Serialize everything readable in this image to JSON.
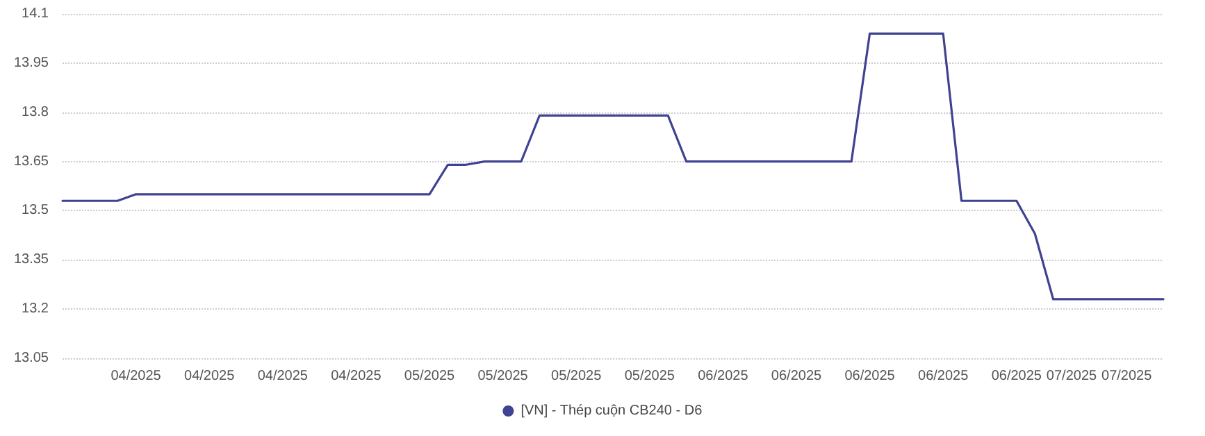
{
  "chart_data": {
    "type": "line",
    "categories": [
      null,
      null,
      null,
      null,
      "04/2025",
      null,
      null,
      null,
      "04/2025",
      null,
      null,
      null,
      "04/2025",
      null,
      null,
      null,
      "04/2025",
      null,
      null,
      null,
      "05/2025",
      null,
      null,
      null,
      "05/2025",
      null,
      null,
      null,
      "05/2025",
      null,
      null,
      null,
      "05/2025",
      null,
      null,
      null,
      "06/2025",
      null,
      null,
      null,
      "06/2025",
      null,
      null,
      null,
      "06/2025",
      null,
      null,
      null,
      "06/2025",
      null,
      null,
      null,
      "06/2025",
      null,
      null,
      "07/2025",
      null,
      null,
      "07/2025",
      null,
      null
    ],
    "series": [
      {
        "name": "[VN] - Thép cuộn CB240 - D6",
        "color": "#3f4391",
        "values": [
          13.53,
          13.53,
          13.53,
          13.53,
          13.55,
          13.55,
          13.55,
          13.55,
          13.55,
          13.55,
          13.55,
          13.55,
          13.55,
          13.55,
          13.55,
          13.55,
          13.55,
          13.55,
          13.55,
          13.55,
          13.55,
          13.64,
          13.64,
          13.65,
          13.65,
          13.65,
          13.79,
          13.79,
          13.79,
          13.79,
          13.79,
          13.79,
          13.79,
          13.79,
          13.65,
          13.65,
          13.65,
          13.65,
          13.65,
          13.65,
          13.65,
          13.65,
          13.65,
          13.65,
          14.04,
          14.04,
          14.04,
          14.04,
          14.04,
          13.53,
          13.53,
          13.53,
          13.53,
          13.43,
          13.23,
          13.23,
          13.23,
          13.23,
          13.23,
          13.23,
          13.23
        ]
      }
    ],
    "ylim": [
      13.05,
      14.1
    ],
    "yticks": [
      13.05,
      13.2,
      13.35,
      13.5,
      13.65,
      13.8,
      13.95,
      14.1
    ],
    "grid": "y",
    "legend": "bottom",
    "marker": "none",
    "line_style": "solid"
  }
}
